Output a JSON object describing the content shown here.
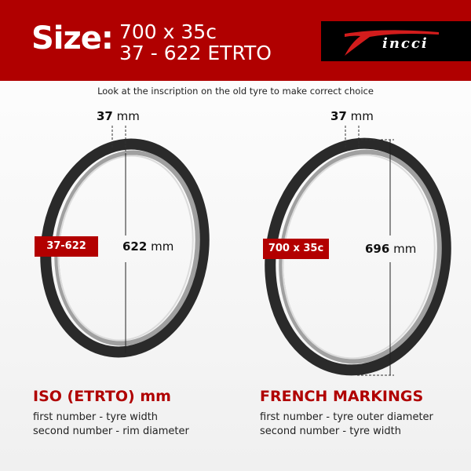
{
  "header": {
    "size_label": "Size:",
    "size_line1": "700 x 35c",
    "size_line2": "37 - 622 ETRTO",
    "logo_text": "Fincci"
  },
  "subtitle": "Look at the inscription on the old tyre to make correct choice",
  "left": {
    "width_value": "37",
    "width_unit": "mm",
    "tag": "37-622",
    "diameter_value": "622",
    "diameter_unit": "mm",
    "heading": "ISO (ETRTO) mm",
    "desc_line1": "first number - tyre width",
    "desc_line2": "second number - rim diameter"
  },
  "right": {
    "width_value": "37",
    "width_unit": "mm",
    "tag": "700 x 35c",
    "diameter_value": "696",
    "diameter_unit": "mm",
    "heading": "FRENCH MARKINGS",
    "desc_line1": "first number - tyre outer diameter",
    "desc_line2": "second number - tyre width"
  },
  "colors": {
    "brand_red": "#b00000",
    "tyre": "#2a2a2a",
    "rim": "#9a9a9a"
  }
}
